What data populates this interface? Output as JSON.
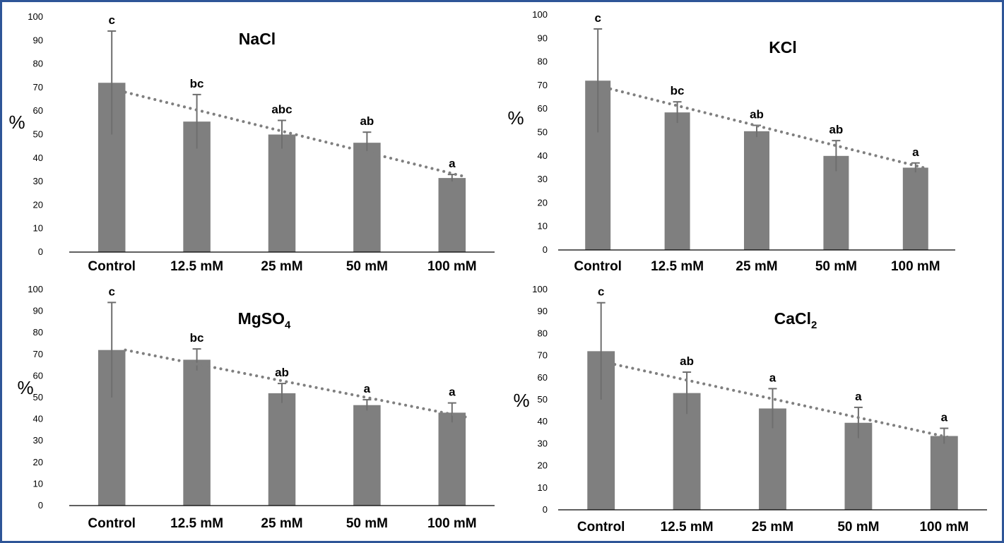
{
  "colors": {
    "frame": "#2e5597",
    "bar": "#7f7f7f",
    "error": "#6e6e6e",
    "trend": "#7f7f7f",
    "axis": "#000000"
  },
  "chart_data": [
    {
      "id": "nacl",
      "type": "bar",
      "title": "NaCl",
      "title_sub": "",
      "ylabel": "%",
      "xlabel": "",
      "ylim": [
        0,
        100
      ],
      "yticks": [
        0,
        10,
        20,
        30,
        40,
        50,
        60,
        70,
        80,
        90,
        100
      ],
      "categories": [
        "Control",
        "12.5 mM",
        "25 mM",
        "50 mM",
        "100 mM"
      ],
      "values": [
        72,
        55.5,
        50,
        46.5,
        31.5
      ],
      "errors": [
        22,
        11.5,
        6,
        4.5,
        1.5
      ],
      "significance": [
        "c",
        "bc",
        "abc",
        "ab",
        "a"
      ],
      "trendline": {
        "type": "linear",
        "start": 68,
        "end": 32
      }
    },
    {
      "id": "kcl",
      "type": "bar",
      "title": "KCl",
      "title_sub": "",
      "ylabel": "%",
      "xlabel": "",
      "ylim": [
        0,
        100
      ],
      "yticks": [
        0,
        10,
        20,
        30,
        40,
        50,
        60,
        70,
        80,
        90,
        100
      ],
      "categories": [
        "Control",
        "12.5 mM",
        "25 mM",
        "50 mM",
        "100 mM"
      ],
      "values": [
        72,
        58.5,
        50.5,
        40,
        35
      ],
      "errors": [
        22,
        4.5,
        2.5,
        6.5,
        2
      ],
      "significance": [
        "c",
        "bc",
        "ab",
        "ab",
        "a"
      ],
      "trendline": {
        "type": "linear",
        "start": 68.5,
        "end": 34.5
      }
    },
    {
      "id": "mgso4",
      "type": "bar",
      "title": "MgSO",
      "title_sub": "4",
      "ylabel": "%",
      "xlabel": "",
      "ylim": [
        0,
        100
      ],
      "yticks": [
        0,
        10,
        20,
        30,
        40,
        50,
        60,
        70,
        80,
        90,
        100
      ],
      "categories": [
        "Control",
        "12.5 mM",
        "25 mM",
        "50 mM",
        "100 mM"
      ],
      "values": [
        72,
        67.5,
        52,
        46.5,
        43
      ],
      "errors": [
        22,
        5,
        4.5,
        2.5,
        4.5
      ],
      "significance": [
        "c",
        "bc",
        "ab",
        "a",
        "a"
      ],
      "trendline": {
        "type": "linear",
        "start": 72,
        "end": 41
      }
    },
    {
      "id": "cacl2",
      "type": "bar",
      "title": "CaCl",
      "title_sub": "2",
      "ylabel": "%",
      "xlabel": "",
      "ylim": [
        0,
        100
      ],
      "yticks": [
        0,
        10,
        20,
        30,
        40,
        50,
        60,
        70,
        80,
        90,
        100
      ],
      "categories": [
        "Control",
        "12.5 mM",
        "25 mM",
        "50 mM",
        "100 mM"
      ],
      "values": [
        72,
        53,
        46,
        39.5,
        33.5
      ],
      "errors": [
        22,
        9.5,
        9,
        7,
        3.5
      ],
      "significance": [
        "c",
        "ab",
        "a",
        "a",
        "a"
      ],
      "trendline": {
        "type": "linear",
        "start": 66,
        "end": 32
      }
    }
  ]
}
